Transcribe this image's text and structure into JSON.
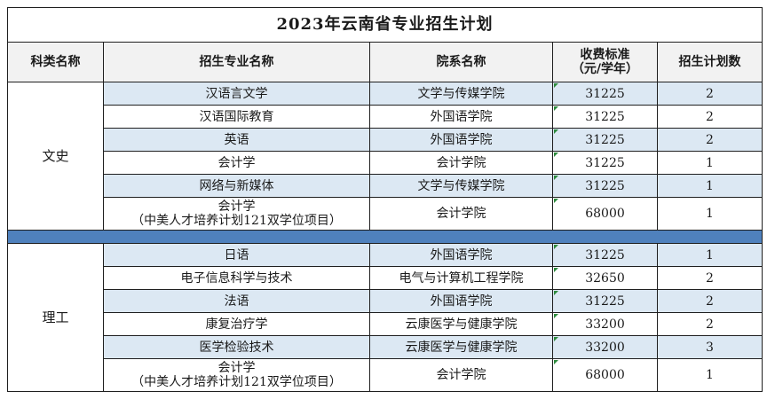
{
  "title": "2023年云南省专业招生计划",
  "headers": {
    "category": "科类名称",
    "major": "招生专业名称",
    "department": "院系名称",
    "fee_line1": "收费标准",
    "fee_line2": "（元/学年）",
    "plan": "招生计划数"
  },
  "groups": [
    {
      "category": "文史",
      "rows": [
        {
          "major": "汉语言文学",
          "major_note": "",
          "department": "文学与传媒学院",
          "fee": "31225",
          "plan": "2"
        },
        {
          "major": "汉语国际教育",
          "major_note": "",
          "department": "外国语学院",
          "fee": "31225",
          "plan": "2"
        },
        {
          "major": "英语",
          "major_note": "",
          "department": "外国语学院",
          "fee": "31225",
          "plan": "2"
        },
        {
          "major": "会计学",
          "major_note": "",
          "department": "会计学院",
          "fee": "31225",
          "plan": "1"
        },
        {
          "major": "网络与新媒体",
          "major_note": "",
          "department": "文学与传媒学院",
          "fee": "31225",
          "plan": "1"
        },
        {
          "major": "会计学",
          "major_note": "（中美人才培养计划121双学位项目）",
          "department": "会计学院",
          "fee": "68000",
          "plan": "1"
        }
      ]
    },
    {
      "category": "理工",
      "rows": [
        {
          "major": "日语",
          "major_note": "",
          "department": "外国语学院",
          "fee": "31225",
          "plan": "1"
        },
        {
          "major": "电子信息科学与技术",
          "major_note": "",
          "department": "电气与计算机工程学院",
          "fee": "32650",
          "plan": "2"
        },
        {
          "major": "法语",
          "major_note": "",
          "department": "外国语学院",
          "fee": "31225",
          "plan": "2"
        },
        {
          "major": "康复治疗学",
          "major_note": "",
          "department": "云康医学与健康学院",
          "fee": "33200",
          "plan": "2"
        },
        {
          "major": "医学检验技术",
          "major_note": "",
          "department": "云康医学与健康学院",
          "fee": "33200",
          "plan": "3"
        },
        {
          "major": "会计学",
          "major_note": "（中美人才培养计划121双学位项目）",
          "department": "会计学院",
          "fee": "68000",
          "plan": "1"
        }
      ]
    }
  ],
  "colors": {
    "row_shade": "#dce8f3",
    "separator": "#4f81bd",
    "marker": "#2e8b3e"
  }
}
